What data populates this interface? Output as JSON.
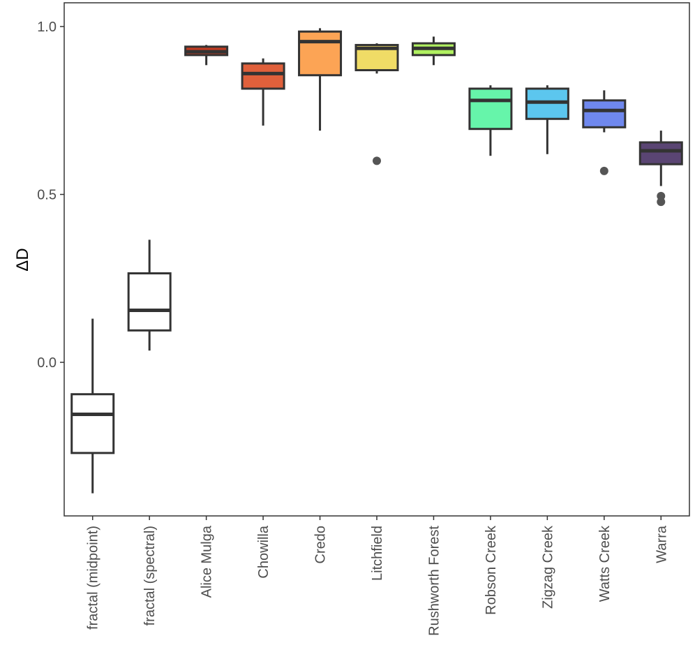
{
  "chart_data": {
    "type": "box",
    "title": "",
    "xlabel": "",
    "ylabel": "ΔD",
    "ylim": [
      -0.45,
      1.07
    ],
    "yticks": [
      0.0,
      0.5,
      1.0
    ],
    "ytick_labels": [
      "0.0",
      "0.5",
      "1.0"
    ],
    "grid": false,
    "legend": "none",
    "categories": [
      "fractal (midpoint)",
      "fractal (spectral)",
      "Alice Mulga",
      "Chowilla",
      "Credo",
      "Litchfield",
      "Rushworth Forest",
      "Robson Creek",
      "Zigzag Creek",
      "Watts Creek",
      "Warra"
    ],
    "colors": [
      "#ffffff",
      "#ffffff",
      "#c23b22",
      "#e0603b",
      "#fca455",
      "#f0dc66",
      "#b0f060",
      "#66f5aa",
      "#5cc6ee",
      "#6f88ee",
      "#5a4573"
    ],
    "boxes": [
      {
        "min": -0.39,
        "q1": -0.27,
        "median": -0.155,
        "q3": -0.095,
        "max": 0.13,
        "outliers": []
      },
      {
        "min": 0.035,
        "q1": 0.095,
        "median": 0.155,
        "q3": 0.265,
        "max": 0.365,
        "outliers": []
      },
      {
        "min": 0.885,
        "q1": 0.915,
        "median": 0.925,
        "q3": 0.94,
        "max": 0.945,
        "outliers": []
      },
      {
        "min": 0.705,
        "q1": 0.815,
        "median": 0.86,
        "q3": 0.89,
        "max": 0.905,
        "outliers": []
      },
      {
        "min": 0.69,
        "q1": 0.855,
        "median": 0.955,
        "q3": 0.985,
        "max": 0.995,
        "outliers": []
      },
      {
        "min": 0.86,
        "q1": 0.87,
        "median": 0.935,
        "q3": 0.945,
        "max": 0.95,
        "outliers": [
          0.6
        ]
      },
      {
        "min": 0.885,
        "q1": 0.915,
        "median": 0.935,
        "q3": 0.95,
        "max": 0.97,
        "outliers": []
      },
      {
        "min": 0.615,
        "q1": 0.695,
        "median": 0.78,
        "q3": 0.815,
        "max": 0.825,
        "outliers": []
      },
      {
        "min": 0.62,
        "q1": 0.725,
        "median": 0.775,
        "q3": 0.815,
        "max": 0.825,
        "outliers": []
      },
      {
        "min": 0.685,
        "q1": 0.7,
        "median": 0.75,
        "q3": 0.78,
        "max": 0.81,
        "outliers": [
          0.57
        ]
      },
      {
        "min": 0.525,
        "q1": 0.59,
        "median": 0.63,
        "q3": 0.655,
        "max": 0.69,
        "outliers": [
          0.495,
          0.478
        ]
      }
    ]
  }
}
